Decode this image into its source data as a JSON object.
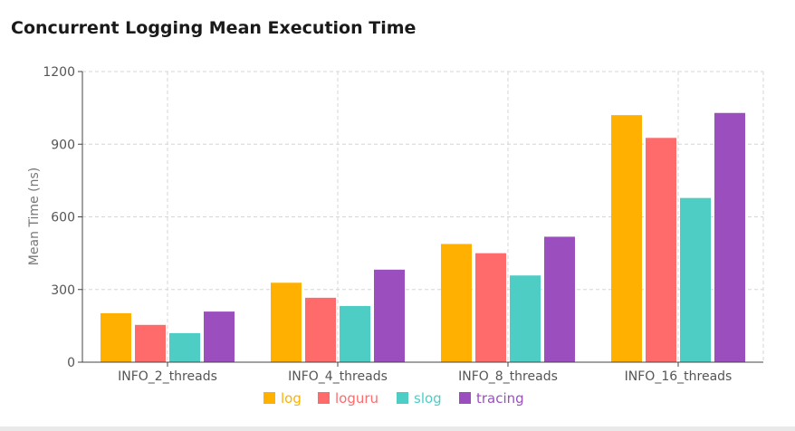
{
  "chart_data": {
    "type": "bar",
    "title": "Concurrent Logging Mean Execution Time",
    "ylabel": "Mean Time (ns)",
    "xlabel": "",
    "ylim": [
      0,
      1200
    ],
    "yticks": [
      0,
      300,
      600,
      900,
      1200
    ],
    "categories": [
      "INFO_2_threads",
      "INFO_4_threads",
      "INFO_8_threads",
      "INFO_16_threads"
    ],
    "series": [
      {
        "name": "log",
        "color": "#FFB000",
        "values": [
          202,
          328,
          488,
          1020
        ]
      },
      {
        "name": "loguru",
        "color": "#FF6B6B",
        "values": [
          154,
          266,
          450,
          926
        ]
      },
      {
        "name": "slog",
        "color": "#4ECDC4",
        "values": [
          120,
          232,
          358,
          678
        ]
      },
      {
        "name": "tracing",
        "color": "#9B4FBF",
        "values": [
          209,
          382,
          518,
          1029
        ]
      }
    ],
    "grid": true,
    "legend": "bottom-center"
  }
}
